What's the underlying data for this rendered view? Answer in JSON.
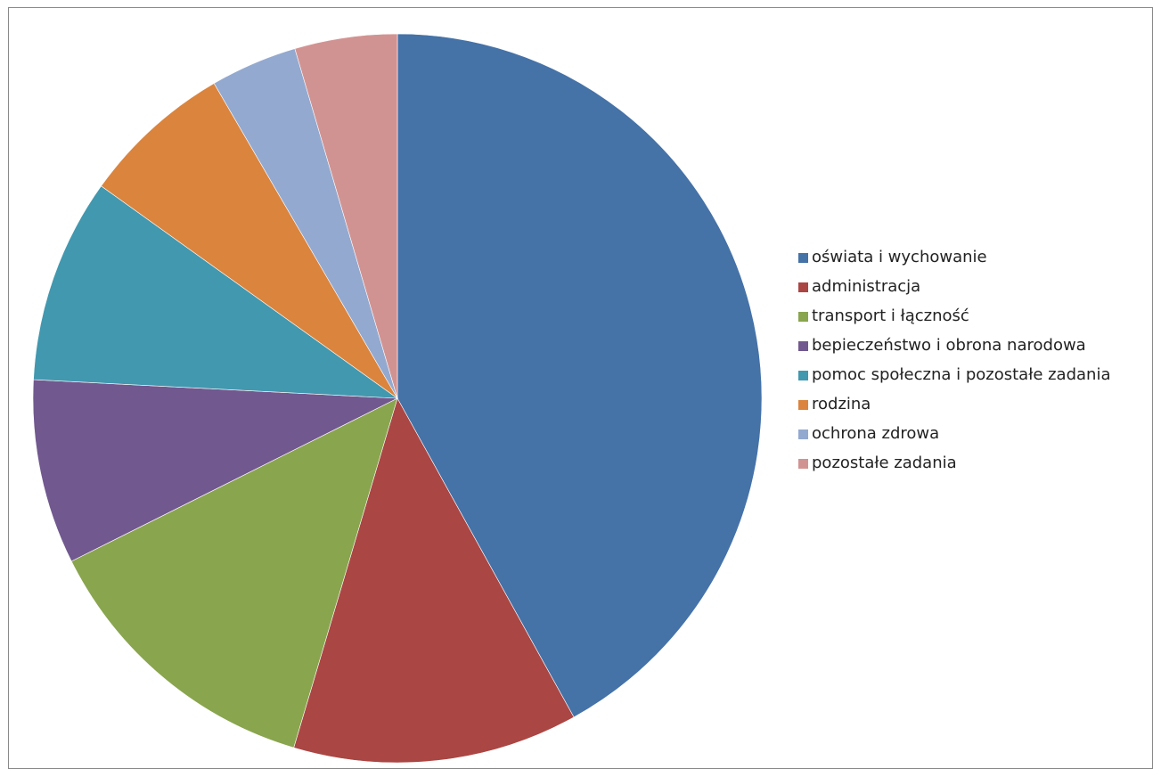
{
  "chart_data": {
    "type": "pie",
    "start_angle": "12 o'clock, clockwise",
    "legend_position": "right",
    "categories": [
      "oświata i wychowanie",
      "administracja",
      "transport i łączność",
      "bepieczeństwo i obrona narodowa",
      "pomoc społeczna i pozostałe zadania",
      "rodzina",
      "ochrona zdrowa",
      "pozostałe zadania"
    ],
    "values": [
      42.5,
      12.8,
      13.2,
      8.3,
      9.2,
      6.8,
      3.9,
      4.6
    ],
    "colors": [
      "#4572a7",
      "#aa4643",
      "#89a54e",
      "#71588f",
      "#4198af",
      "#db843d",
      "#93a9cf",
      "#d19392"
    ]
  }
}
